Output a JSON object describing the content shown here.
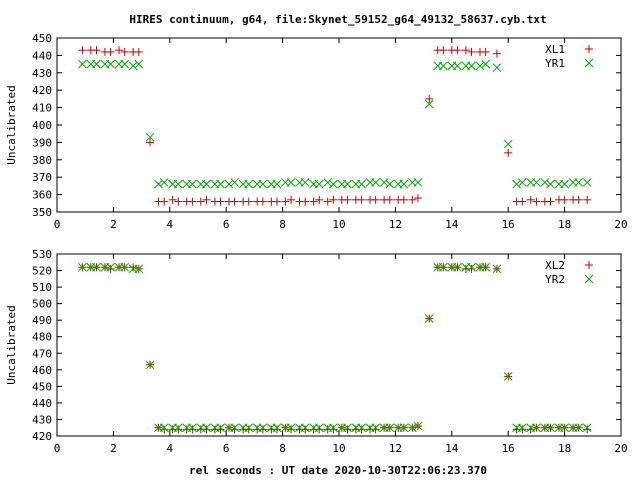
{
  "title": "HIRES continuum, g64, file:Skynet_59152_g64_49132_58637.cyb.txt",
  "xlabel": "rel seconds : UT date 2020-10-30T22:06:23.370",
  "chart_data": [
    {
      "type": "scatter",
      "ylabel": "Uncalibrated",
      "xlim": [
        0,
        20
      ],
      "ylim": [
        350,
        450
      ],
      "xticks": [
        0,
        2,
        4,
        6,
        8,
        10,
        12,
        14,
        16,
        18,
        20
      ],
      "yticks": [
        350,
        360,
        370,
        380,
        390,
        400,
        410,
        420,
        430,
        440,
        450
      ],
      "legend_position": "top-right",
      "grid": false,
      "series": [
        {
          "name": "XL1",
          "marker": "plus",
          "color": "#cc0000",
          "x": [
            0.9,
            1.2,
            1.4,
            1.7,
            1.9,
            2.2,
            2.4,
            2.7,
            2.9,
            3.3,
            3.6,
            3.8,
            4.1,
            4.3,
            4.6,
            4.8,
            5.1,
            5.3,
            5.6,
            5.8,
            6.1,
            6.3,
            6.6,
            6.8,
            7.1,
            7.3,
            7.6,
            7.8,
            8.1,
            8.3,
            8.6,
            8.8,
            9.1,
            9.3,
            9.6,
            9.8,
            10.1,
            10.3,
            10.6,
            10.8,
            11.1,
            11.3,
            11.6,
            11.8,
            12.1,
            12.3,
            12.6,
            12.8,
            13.2,
            13.5,
            13.7,
            14.0,
            14.2,
            14.5,
            14.7,
            15.0,
            15.2,
            15.6,
            16.0,
            16.3,
            16.5,
            16.8,
            17.0,
            17.3,
            17.5,
            17.8,
            18.0,
            18.3,
            18.5,
            18.8
          ],
          "y": [
            443,
            443,
            443,
            442,
            442,
            443,
            442,
            442,
            442,
            390,
            356,
            356,
            357,
            356,
            356,
            356,
            356,
            357,
            356,
            356,
            356,
            356,
            356,
            356,
            356,
            356,
            356,
            356,
            356,
            357,
            356,
            356,
            356,
            357,
            356,
            357,
            357,
            357,
            357,
            357,
            357,
            357,
            357,
            357,
            357,
            357,
            357,
            358,
            415,
            443,
            443,
            443,
            443,
            443,
            442,
            442,
            442,
            441,
            384,
            356,
            356,
            357,
            356,
            356,
            356,
            357,
            357,
            357,
            357,
            357
          ]
        },
        {
          "name": "YR1",
          "marker": "cross",
          "color": "#00aa00",
          "x": [
            0.9,
            1.2,
            1.4,
            1.7,
            1.9,
            2.2,
            2.4,
            2.7,
            2.9,
            3.3,
            3.6,
            3.8,
            4.1,
            4.3,
            4.6,
            4.8,
            5.1,
            5.3,
            5.6,
            5.8,
            6.1,
            6.3,
            6.6,
            6.8,
            7.1,
            7.3,
            7.6,
            7.8,
            8.1,
            8.3,
            8.6,
            8.8,
            9.1,
            9.3,
            9.6,
            9.8,
            10.1,
            10.3,
            10.6,
            10.8,
            11.1,
            11.3,
            11.6,
            11.8,
            12.1,
            12.3,
            12.6,
            12.8,
            13.2,
            13.5,
            13.7,
            14.0,
            14.2,
            14.5,
            14.7,
            15.0,
            15.2,
            15.6,
            16.0,
            16.3,
            16.5,
            16.8,
            17.0,
            17.3,
            17.5,
            17.8,
            18.0,
            18.3,
            18.5,
            18.8
          ],
          "y": [
            435,
            435,
            435,
            435,
            435,
            435,
            435,
            434,
            435,
            393,
            366,
            367,
            366,
            366,
            366,
            366,
            366,
            366,
            366,
            366,
            366,
            367,
            366,
            366,
            366,
            366,
            366,
            366,
            367,
            367,
            367,
            367,
            366,
            366,
            367,
            366,
            366,
            366,
            366,
            366,
            367,
            367,
            367,
            366,
            366,
            366,
            367,
            367,
            412,
            434,
            434,
            434,
            434,
            434,
            434,
            434,
            435,
            433,
            389,
            366,
            367,
            367,
            367,
            367,
            366,
            366,
            366,
            367,
            367,
            367
          ]
        }
      ]
    },
    {
      "type": "scatter",
      "ylabel": "Uncalibrated",
      "xlim": [
        0,
        20
      ],
      "ylim": [
        420,
        530
      ],
      "xticks": [
        0,
        2,
        4,
        6,
        8,
        10,
        12,
        14,
        16,
        18,
        20
      ],
      "yticks": [
        420,
        430,
        440,
        450,
        460,
        470,
        480,
        490,
        500,
        510,
        520,
        530
      ],
      "legend_position": "top-right",
      "grid": false,
      "series": [
        {
          "name": "XL2",
          "marker": "plus",
          "color": "#cc0000",
          "x": [
            0.9,
            1.2,
            1.4,
            1.7,
            1.9,
            2.2,
            2.4,
            2.7,
            2.9,
            3.3,
            3.6,
            3.8,
            4.1,
            4.3,
            4.6,
            4.8,
            5.1,
            5.3,
            5.6,
            5.8,
            6.1,
            6.3,
            6.6,
            6.8,
            7.1,
            7.3,
            7.6,
            7.8,
            8.1,
            8.3,
            8.6,
            8.8,
            9.1,
            9.3,
            9.6,
            9.8,
            10.1,
            10.3,
            10.6,
            10.8,
            11.1,
            11.3,
            11.6,
            11.8,
            12.1,
            12.3,
            12.6,
            12.8,
            13.2,
            13.5,
            13.7,
            14.0,
            14.2,
            14.5,
            14.7,
            15.0,
            15.2,
            15.6,
            16.0,
            16.3,
            16.5,
            16.8,
            17.0,
            17.3,
            17.5,
            17.8,
            18.0,
            18.3,
            18.5,
            18.8
          ],
          "y": [
            522,
            522,
            522,
            522,
            521,
            522,
            522,
            522,
            521,
            463,
            425,
            424,
            424,
            424,
            424,
            424,
            424,
            424,
            424,
            424,
            425,
            424,
            424,
            424,
            424,
            424,
            424,
            424,
            425,
            424,
            424,
            424,
            424,
            424,
            424,
            424,
            425,
            424,
            424,
            424,
            424,
            424,
            425,
            425,
            425,
            425,
            425,
            426,
            491,
            522,
            522,
            522,
            522,
            521,
            521,
            522,
            522,
            521,
            456,
            424,
            424,
            424,
            425,
            425,
            425,
            425,
            425,
            425,
            425,
            424
          ]
        },
        {
          "name": "YR2",
          "marker": "cross",
          "color": "#00aa00",
          "x": [
            0.9,
            1.2,
            1.4,
            1.7,
            1.9,
            2.2,
            2.4,
            2.7,
            2.9,
            3.3,
            3.6,
            3.8,
            4.1,
            4.3,
            4.6,
            4.8,
            5.1,
            5.3,
            5.6,
            5.8,
            6.1,
            6.3,
            6.6,
            6.8,
            7.1,
            7.3,
            7.6,
            7.8,
            8.1,
            8.3,
            8.6,
            8.8,
            9.1,
            9.3,
            9.6,
            9.8,
            10.1,
            10.3,
            10.6,
            10.8,
            11.1,
            11.3,
            11.6,
            11.8,
            12.1,
            12.3,
            12.6,
            12.8,
            13.2,
            13.5,
            13.7,
            14.0,
            14.2,
            14.5,
            14.7,
            15.0,
            15.2,
            15.6,
            16.0,
            16.3,
            16.5,
            16.8,
            17.0,
            17.3,
            17.5,
            17.8,
            18.0,
            18.3,
            18.5,
            18.8
          ],
          "y": [
            522,
            522,
            522,
            522,
            522,
            522,
            522,
            521,
            521,
            463,
            425,
            425,
            425,
            425,
            425,
            425,
            425,
            425,
            425,
            425,
            425,
            425,
            425,
            425,
            425,
            425,
            425,
            425,
            425,
            425,
            425,
            425,
            425,
            425,
            425,
            425,
            425,
            425,
            425,
            425,
            425,
            425,
            425,
            425,
            425,
            425,
            425,
            426,
            491,
            522,
            522,
            522,
            522,
            522,
            522,
            522,
            522,
            521,
            456,
            425,
            425,
            425,
            425,
            425,
            425,
            425,
            425,
            425,
            425,
            425
          ]
        }
      ]
    }
  ]
}
